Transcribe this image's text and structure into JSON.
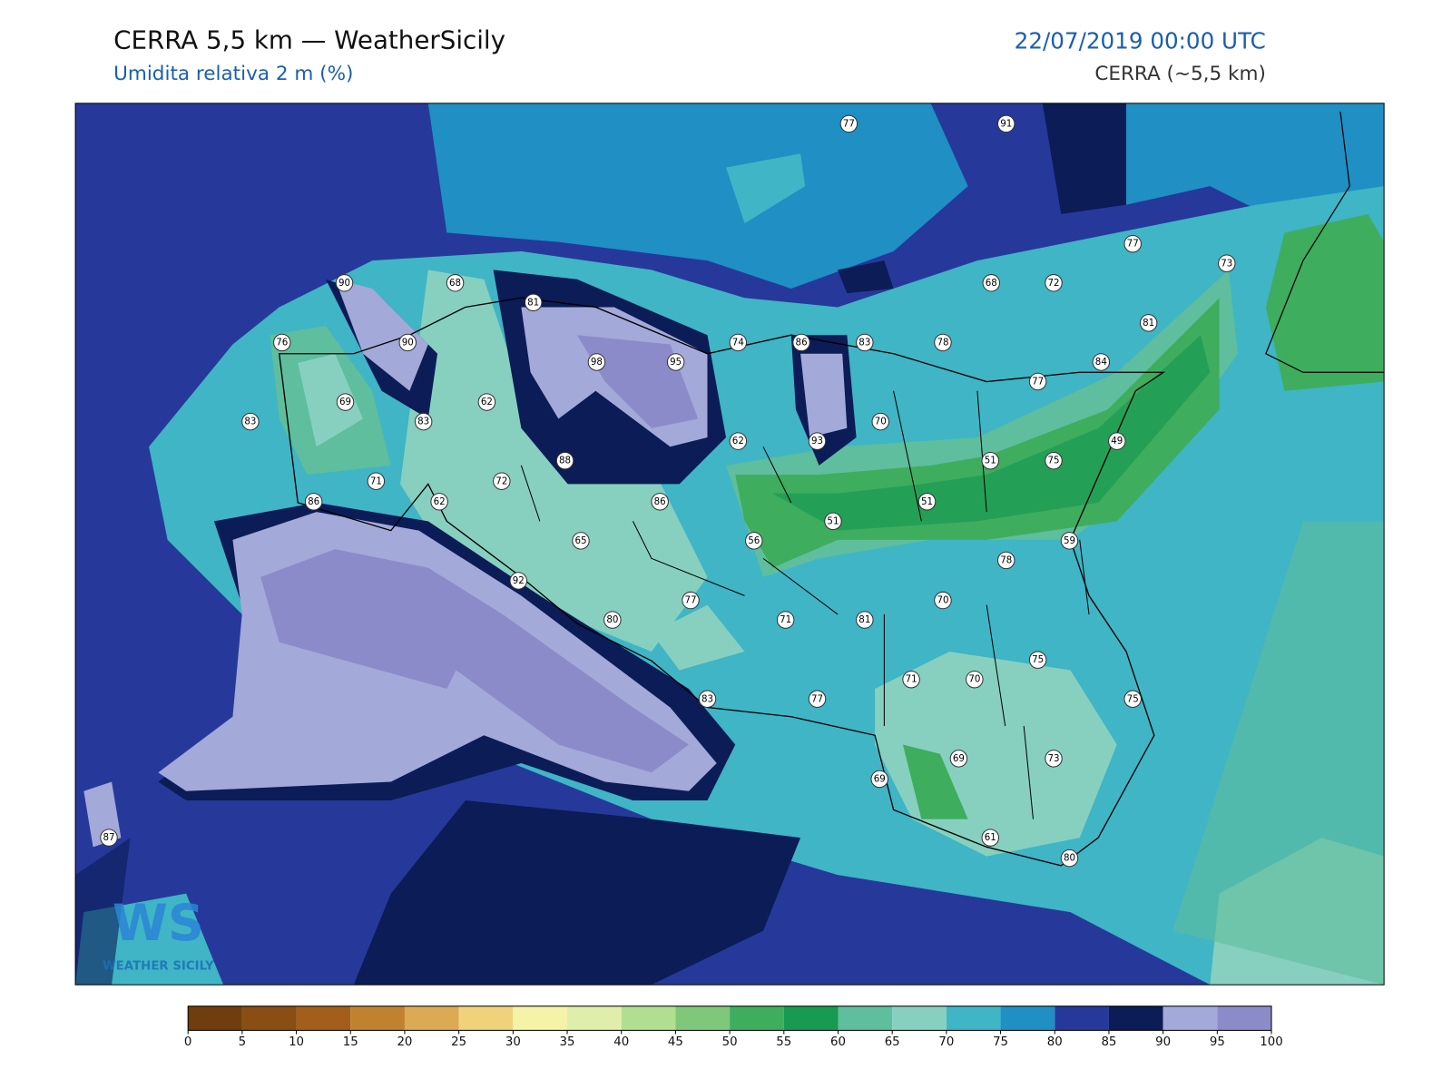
{
  "header": {
    "title": "CERRA 5,5 km — WeatherSicily",
    "subtitle": "Umidita relativa 2 m (%)",
    "date": "22/07/2019 00:00 UTC",
    "model": "CERRA (~5,5 km)"
  },
  "map": {
    "stations": [
      77,
      91,
      77,
      73,
      90,
      68,
      81,
      68,
      72,
      81,
      76,
      90,
      98,
      95,
      74,
      86,
      83,
      78,
      84,
      77,
      69,
      62,
      83,
      83,
      70,
      62,
      93,
      49,
      88,
      51,
      75,
      71,
      72,
      86,
      62,
      86,
      51,
      51,
      65,
      56,
      59,
      78,
      92,
      77,
      70,
      80,
      71,
      81,
      75,
      71,
      70,
      75,
      83,
      77,
      69,
      73,
      69,
      61,
      80,
      87
    ],
    "watermark": {
      "logo": "WS",
      "name": "WEATHER SICILY"
    }
  },
  "colorbar": {
    "ticks": [
      0,
      5,
      10,
      15,
      20,
      25,
      30,
      35,
      40,
      45,
      50,
      55,
      60,
      65,
      70,
      75,
      80,
      85,
      90,
      95,
      100
    ],
    "colors": [
      "#6f3e0c",
      "#8a4d13",
      "#a25e1a",
      "#c0822e",
      "#dcaa55",
      "#efd27a",
      "#f5f3a8",
      "#dfeeaa",
      "#b2df8f",
      "#7fc77a",
      "#3fad5e",
      "#199a52",
      "#5ebe9d",
      "#87d0bf",
      "#3fb5c6",
      "#1f8fc4",
      "#26399a",
      "#0b1c57",
      "#a3a9d8",
      "#8c8bc9"
    ]
  }
}
